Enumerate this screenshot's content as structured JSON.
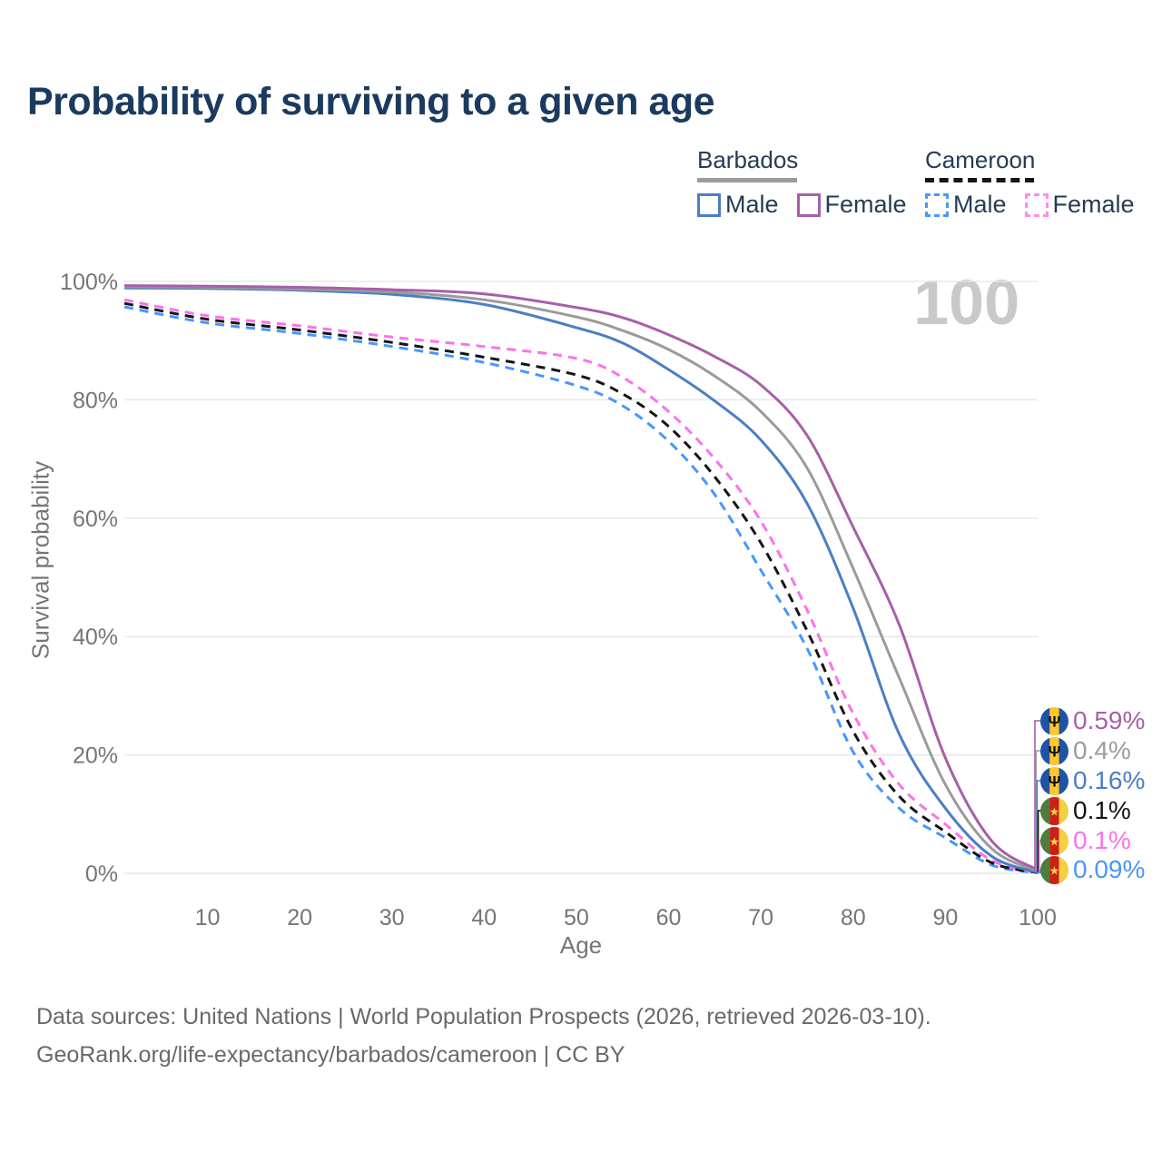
{
  "title": "Probability of surviving to a given age",
  "watermark": "100",
  "legend": {
    "groups": [
      {
        "country": "Barbados",
        "line_style": "solid",
        "line_color": "#9b9b9b",
        "items": [
          {
            "label": "Male",
            "color": "#4b7ec6",
            "dashed": false
          },
          {
            "label": "Female",
            "color": "#a75fa9",
            "dashed": false
          }
        ]
      },
      {
        "country": "Cameroon",
        "line_style": "dashed",
        "line_color": "#151515",
        "items": [
          {
            "label": "Male",
            "color": "#4796ff",
            "dashed": true
          },
          {
            "label": "Female",
            "color": "#ff8cef",
            "dashed": true
          }
        ]
      }
    ]
  },
  "chart_data": {
    "type": "line",
    "title": "Probability of surviving to a given age",
    "xlabel": "Age",
    "ylabel": "Survival probability",
    "xlim": [
      1,
      100
    ],
    "ylim": [
      0,
      100
    ],
    "grid": "horizontal",
    "legend_position": "top-right",
    "xticks": [
      10,
      20,
      30,
      40,
      50,
      60,
      70,
      80,
      90,
      100
    ],
    "yticks": [
      {
        "value": 0,
        "label": "0%"
      },
      {
        "value": 20,
        "label": "20%"
      },
      {
        "value": 40,
        "label": "40%"
      },
      {
        "value": 60,
        "label": "60%"
      },
      {
        "value": 80,
        "label": "80%"
      },
      {
        "value": 100,
        "label": "100%"
      }
    ],
    "ages": [
      1,
      10,
      20,
      30,
      40,
      50,
      55,
      60,
      65,
      70,
      75,
      80,
      85,
      90,
      95,
      100
    ],
    "series": [
      {
        "name": "Barbados Female",
        "country": "Barbados",
        "sex": "Female",
        "color": "#a75fa9",
        "dashed": false,
        "values": [
          99.3,
          99.2,
          99.0,
          98.6,
          97.9,
          95.6,
          93.9,
          91.0,
          87.3,
          82.5,
          74.0,
          58.5,
          42.0,
          19.5,
          5.5,
          0.59
        ]
      },
      {
        "name": "Barbados Both sexes",
        "country": "Barbados",
        "sex": "Both",
        "color": "#9b9b9b",
        "dashed": false,
        "values": [
          99.1,
          99.0,
          98.7,
          98.2,
          96.9,
          94.0,
          91.7,
          88.5,
          84.0,
          78.0,
          68.5,
          51.5,
          33.0,
          15.0,
          4.2,
          0.4
        ]
      },
      {
        "name": "Barbados Male",
        "country": "Barbados",
        "sex": "Male",
        "color": "#4b7ec6",
        "dashed": false,
        "values": [
          98.9,
          98.8,
          98.5,
          97.8,
          96.1,
          92.2,
          89.6,
          85.1,
          79.8,
          73.2,
          62.5,
          44.8,
          23.5,
          11.0,
          2.9,
          0.16
        ]
      },
      {
        "name": "Cameroon Both sexes",
        "country": "Cameroon",
        "sex": "Both",
        "color": "#141414",
        "dashed": true,
        "values": [
          96.3,
          93.6,
          91.8,
          89.7,
          87.2,
          84.2,
          81.0,
          75.5,
          67.0,
          55.8,
          41.0,
          24.0,
          13.0,
          7.0,
          1.8,
          0.1
        ]
      },
      {
        "name": "Cameroon Female",
        "country": "Cameroon",
        "sex": "Female",
        "color": "#ff70ea",
        "dashed": true,
        "values": [
          96.9,
          94.2,
          92.5,
          90.6,
          89.0,
          87.0,
          83.8,
          78.0,
          70.0,
          59.5,
          44.5,
          27.0,
          15.0,
          8.3,
          2.2,
          0.1
        ]
      },
      {
        "name": "Cameroon Male",
        "country": "Cameroon",
        "sex": "Male",
        "color": "#4796ff",
        "dashed": true,
        "values": [
          95.7,
          93.0,
          91.2,
          89.0,
          86.3,
          82.4,
          79.0,
          73.0,
          64.0,
          51.2,
          38.0,
          20.5,
          11.0,
          6.0,
          1.4,
          0.09
        ]
      }
    ]
  },
  "end_labels": [
    {
      "series": 0,
      "value": "0.59%",
      "color": "#a75fa9",
      "flag": "barbados"
    },
    {
      "series": 1,
      "value": "0.4%",
      "color": "#9b9b9b",
      "flag": "barbados"
    },
    {
      "series": 2,
      "value": "0.16%",
      "color": "#4b7ec6",
      "flag": "barbados"
    },
    {
      "series": 3,
      "value": "0.1%",
      "color": "#141414",
      "flag": "cameroon"
    },
    {
      "series": 4,
      "value": "0.1%",
      "color": "#ff70ea",
      "flag": "cameroon"
    },
    {
      "series": 5,
      "value": "0.09%",
      "color": "#4796ff",
      "flag": "cameroon"
    }
  ],
  "flags": {
    "barbados": {
      "stripes": [
        "#2053a4",
        "#ffc72b",
        "#2053a4"
      ],
      "glyph": "Ψ",
      "glyph_color": "#0f0f0f"
    },
    "cameroon": {
      "stripes": [
        "#4e7c3a",
        "#cc2015",
        "#f4cf43"
      ],
      "glyph": "★",
      "glyph_color": "#f6d44a"
    }
  },
  "footer": {
    "line1": "Data sources: United Nations | World Population Prospects (2026, retrieved 2026-03-10).",
    "line2": "GeoRank.org/life-expectancy/barbados/cameroon | CC BY"
  }
}
